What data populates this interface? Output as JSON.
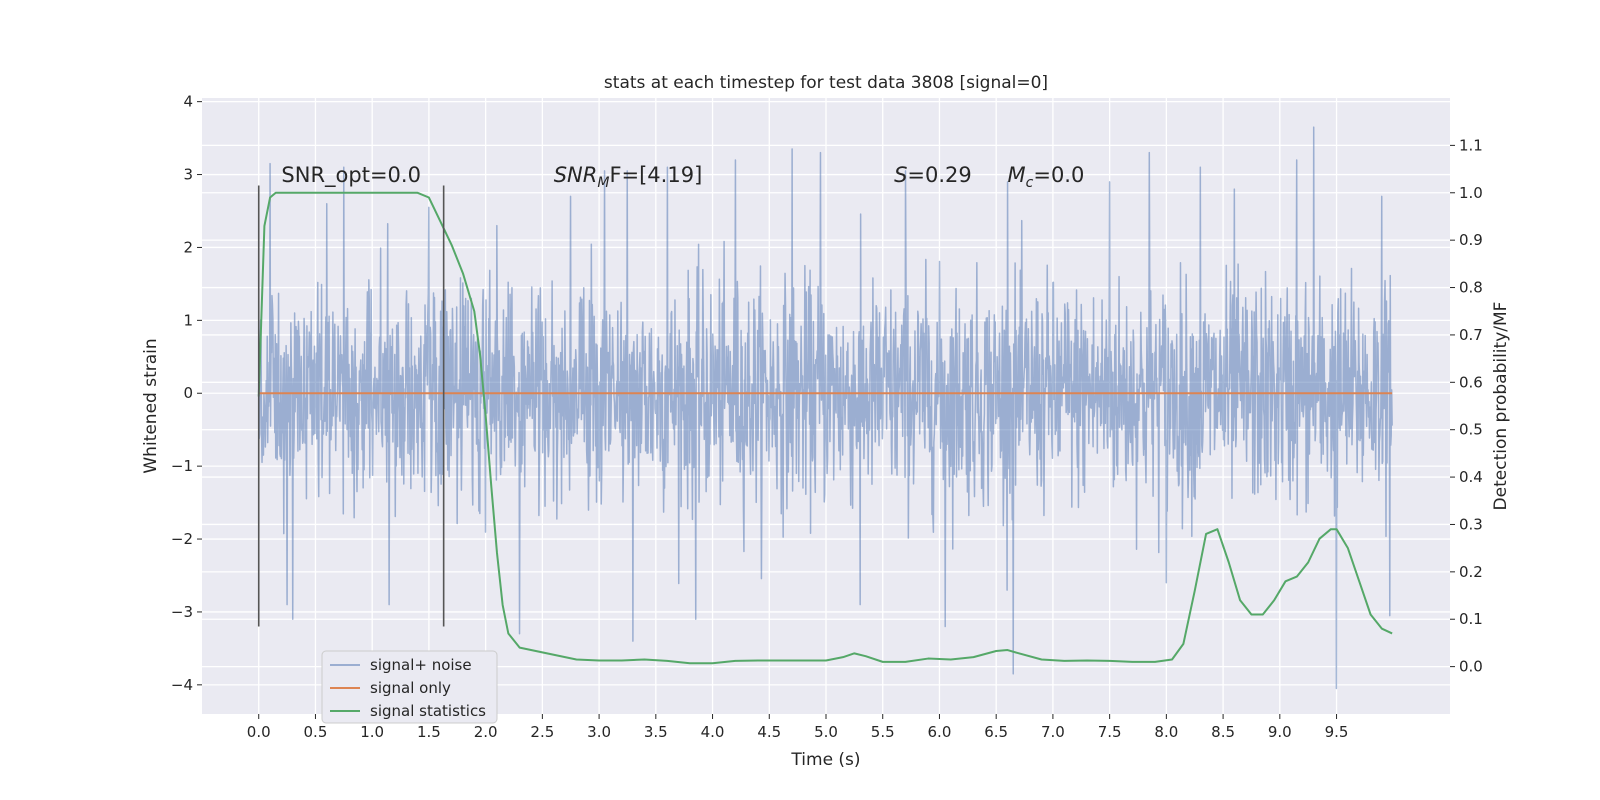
{
  "chart_data": {
    "type": "line",
    "title": "stats at each timestep for test data 3808 [signal=0]",
    "xlabel": "Time (s)",
    "ylabel": "Whitened strain",
    "ylabel_right": "Detection probability/MF",
    "xlim": [
      -0.5,
      10.5
    ],
    "ylim": [
      -4.4,
      4.05
    ],
    "ylim_right": [
      -0.1,
      1.2
    ],
    "x_ticks": [
      0.0,
      0.5,
      1.0,
      1.5,
      2.0,
      2.5,
      3.0,
      3.5,
      4.0,
      4.5,
      5.0,
      5.5,
      6.0,
      6.5,
      7.0,
      7.5,
      8.0,
      8.5,
      9.0,
      9.5
    ],
    "x_tick_labels": [
      "0.0",
      "0.5",
      "1.0",
      "1.5",
      "2.0",
      "2.5",
      "3.0",
      "3.5",
      "4.0",
      "4.5",
      "5.0",
      "5.5",
      "6.0",
      "6.5",
      "7.0",
      "7.5",
      "8.0",
      "8.5",
      "9.0",
      "9.5"
    ],
    "y_ticks": [
      -4,
      -3,
      -2,
      -1,
      0,
      1,
      2,
      3,
      4
    ],
    "y_tick_labels": [
      "−4",
      "−3",
      "−2",
      "−1",
      "0",
      "1",
      "2",
      "3",
      "4"
    ],
    "y_ticks_right": [
      0.0,
      0.1,
      0.2,
      0.3,
      0.4,
      0.5,
      0.6,
      0.7,
      0.8,
      0.9,
      1.0,
      1.1
    ],
    "y_tick_labels_right": [
      "0.0",
      "0.1",
      "0.2",
      "0.3",
      "0.4",
      "0.5",
      "0.6",
      "0.7",
      "0.8",
      "0.9",
      "1.0",
      "1.1"
    ],
    "grid": true,
    "legend_position": "bottom-left",
    "vertical_lines": [
      {
        "x": 0.0,
        "y_range": [
          -3.2,
          2.85
        ]
      },
      {
        "x": 1.63,
        "y_range": [
          -3.2,
          2.85
        ]
      }
    ],
    "annotations": [
      {
        "key": "snr_opt",
        "text": "SNR_opt=0.0",
        "x": 0.2,
        "y": 2.9
      },
      {
        "key": "snr_mf",
        "text": "SNR",
        "sub": "M",
        "tail": "F=[4.19]",
        "italic": true,
        "x": 2.6,
        "y": 2.9
      },
      {
        "key": "s",
        "text": "S",
        "tail": "=0.29",
        "italic": true,
        "x": 5.6,
        "y": 2.9
      },
      {
        "key": "mc",
        "text": "M",
        "sub": "c",
        "tail": "=0.0",
        "italic": true,
        "x": 6.6,
        "y": 2.9
      }
    ],
    "series": [
      {
        "name": "signal+ noise",
        "color": "#4c72b0",
        "opacity": 0.5,
        "axis": "left",
        "x_range": [
          0.0,
          9.99
        ],
        "envelope": {
          "typical_amplitude": 1.5,
          "peaks": [
            [
              0.1,
              3.15
            ],
            [
              0.25,
              -2.9
            ],
            [
              0.3,
              -3.1
            ],
            [
              0.6,
              2.6
            ],
            [
              0.75,
              3.1
            ],
            [
              1.15,
              -2.9
            ],
            [
              1.5,
              2.55
            ],
            [
              2.1,
              2.3
            ],
            [
              2.3,
              -3.3
            ],
            [
              2.75,
              2.7
            ],
            [
              3.05,
              3.05
            ],
            [
              3.25,
              3.05
            ],
            [
              3.3,
              -3.4
            ],
            [
              3.6,
              3.1
            ],
            [
              3.85,
              -3.1
            ],
            [
              4.2,
              3.2
            ],
            [
              4.7,
              3.35
            ],
            [
              4.95,
              3.3
            ],
            [
              5.3,
              -2.9
            ],
            [
              5.7,
              3.05
            ],
            [
              6.05,
              -3.2
            ],
            [
              6.6,
              2.9
            ],
            [
              6.65,
              -3.85
            ],
            [
              7.5,
              2.9
            ],
            [
              7.85,
              3.3
            ],
            [
              8.0,
              -2.6
            ],
            [
              8.3,
              3.1
            ],
            [
              8.6,
              2.8
            ],
            [
              9.15,
              3.2
            ],
            [
              9.3,
              3.65
            ],
            [
              9.5,
              -4.05
            ],
            [
              9.9,
              2.7
            ],
            [
              9.97,
              -3.05
            ]
          ]
        }
      },
      {
        "name": "signal only",
        "color": "#dd8452",
        "axis": "left",
        "x": [
          0.0,
          9.99
        ],
        "y": [
          0.0,
          0.0
        ]
      },
      {
        "name": "signal statistics",
        "color": "#55a868",
        "axis": "right",
        "x": [
          0.0,
          0.05,
          0.1,
          0.15,
          0.2,
          0.4,
          0.8,
          1.2,
          1.3,
          1.4,
          1.5,
          1.6,
          1.7,
          1.8,
          1.9,
          1.95,
          2.0,
          2.05,
          2.1,
          2.15,
          2.2,
          2.3,
          2.5,
          2.8,
          3.0,
          3.2,
          3.4,
          3.6,
          3.8,
          4.0,
          4.2,
          4.4,
          4.6,
          4.8,
          5.0,
          5.15,
          5.25,
          5.35,
          5.5,
          5.7,
          5.9,
          6.1,
          6.3,
          6.5,
          6.6,
          6.7,
          6.9,
          7.1,
          7.3,
          7.5,
          7.7,
          7.9,
          8.05,
          8.15,
          8.25,
          8.35,
          8.45,
          8.55,
          8.65,
          8.75,
          8.85,
          8.95,
          9.05,
          9.15,
          9.25,
          9.35,
          9.45,
          9.5,
          9.6,
          9.7,
          9.8,
          9.9,
          9.99
        ],
        "y": [
          0.57,
          0.93,
          0.99,
          1.0,
          1.0,
          1.0,
          1.0,
          1.0,
          1.0,
          1.0,
          0.99,
          0.94,
          0.89,
          0.83,
          0.75,
          0.66,
          0.53,
          0.38,
          0.24,
          0.13,
          0.07,
          0.04,
          0.03,
          0.015,
          0.013,
          0.013,
          0.015,
          0.012,
          0.007,
          0.007,
          0.012,
          0.013,
          0.013,
          0.013,
          0.013,
          0.02,
          0.028,
          0.022,
          0.01,
          0.01,
          0.017,
          0.015,
          0.02,
          0.033,
          0.035,
          0.028,
          0.015,
          0.012,
          0.013,
          0.012,
          0.01,
          0.01,
          0.015,
          0.048,
          0.16,
          0.28,
          0.29,
          0.22,
          0.14,
          0.11,
          0.11,
          0.14,
          0.18,
          0.19,
          0.22,
          0.27,
          0.29,
          0.29,
          0.25,
          0.18,
          0.11,
          0.08,
          0.07
        ]
      }
    ]
  }
}
